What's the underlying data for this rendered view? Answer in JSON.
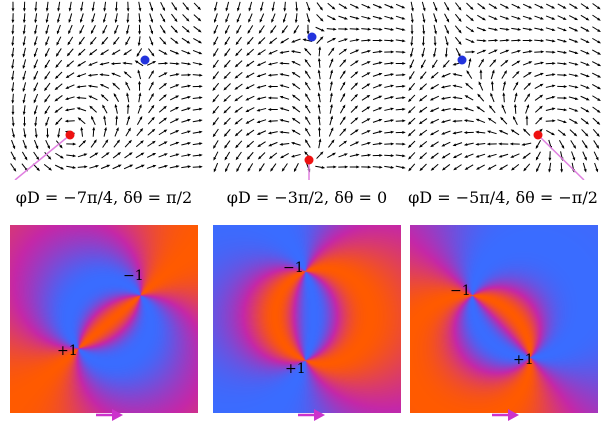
{
  "panels": [
    {
      "caption": "φD = −7π/4, δθ = π/2",
      "phi_d": "−7π/4",
      "delta_theta": "π/2",
      "labels": {
        "minus": "−1",
        "plus": "+1"
      }
    },
    {
      "caption": "φD = −3π/2, δθ = 0",
      "phi_d": "−3π/2",
      "delta_theta": "0",
      "labels": {
        "minus": "−1",
        "plus": "+1"
      }
    },
    {
      "caption": "φD = −5π/4, δθ = −π/2",
      "phi_d": "−5π/4",
      "delta_theta": "−π/2",
      "labels": {
        "minus": "−1",
        "plus": "+1"
      }
    }
  ],
  "colors": {
    "arrow": "#000000",
    "minus_defect": "#2233dd",
    "plus_defect": "#ee1111",
    "trajectory": "#e080e0",
    "phase_warm": "#ff5a00",
    "phase_cool": "#3a6cff",
    "drive_arrow": "#cc33cc"
  }
}
